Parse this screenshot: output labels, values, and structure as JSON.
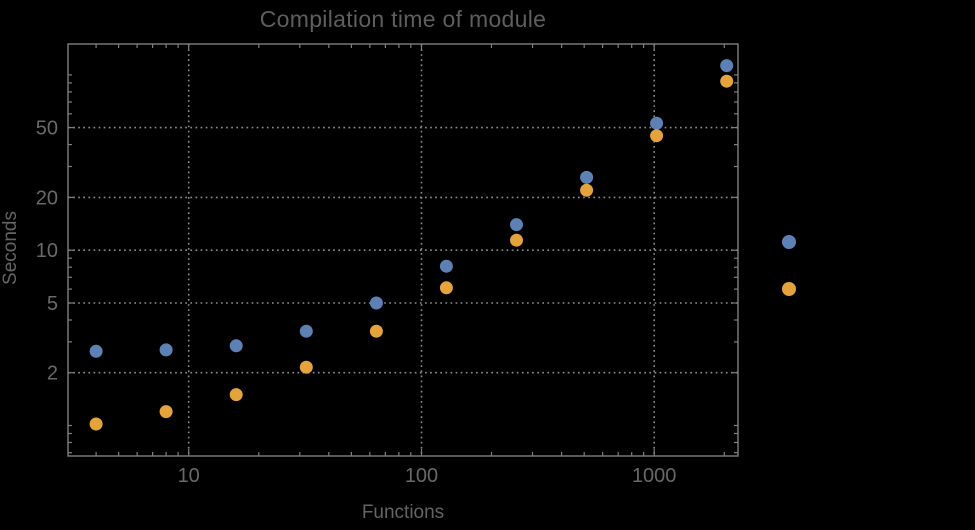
{
  "window": {
    "background": "#000000"
  },
  "chart_data": {
    "type": "scatter",
    "title": "Compilation time of module",
    "xlabel": "Functions",
    "ylabel": "Seconds",
    "xscale": "log",
    "yscale": "log",
    "xlim": [
      3.03,
      2290
    ],
    "ylim": [
      0.67,
      150
    ],
    "grid": "dotted-major",
    "x_ticks": {
      "major": [
        10,
        100,
        1000
      ],
      "labels": [
        "10",
        "100",
        "1000"
      ]
    },
    "y_ticks": {
      "major": [
        2,
        5,
        10,
        20,
        50
      ],
      "labels": [
        "2",
        "5",
        "10",
        "20",
        "50"
      ]
    },
    "x": [
      4,
      8,
      16,
      32,
      64,
      128,
      256,
      512,
      1024,
      2048
    ],
    "series": [
      {
        "name": "blue-series",
        "color": "#5E81B5",
        "values": [
          2.65,
          2.7,
          2.85,
          3.45,
          5.0,
          8.1,
          14,
          26,
          53,
          113
        ]
      },
      {
        "name": "orange-series",
        "color": "#E5A33C",
        "values": [
          1.02,
          1.2,
          1.5,
          2.15,
          3.45,
          6.1,
          11.4,
          22,
          45,
          92
        ]
      }
    ],
    "legend": {
      "position": "right-outside-middle",
      "text_visible": false,
      "marker_colors": [
        "#5E81B5",
        "#E5A33C"
      ]
    }
  },
  "colors": {
    "background": "#000000",
    "frame": "#7f7f7f",
    "gridline": "#8c8c8c",
    "tick_label": "#696969",
    "title_text": "#5e5e5e",
    "axis_label_text": "#646464"
  }
}
